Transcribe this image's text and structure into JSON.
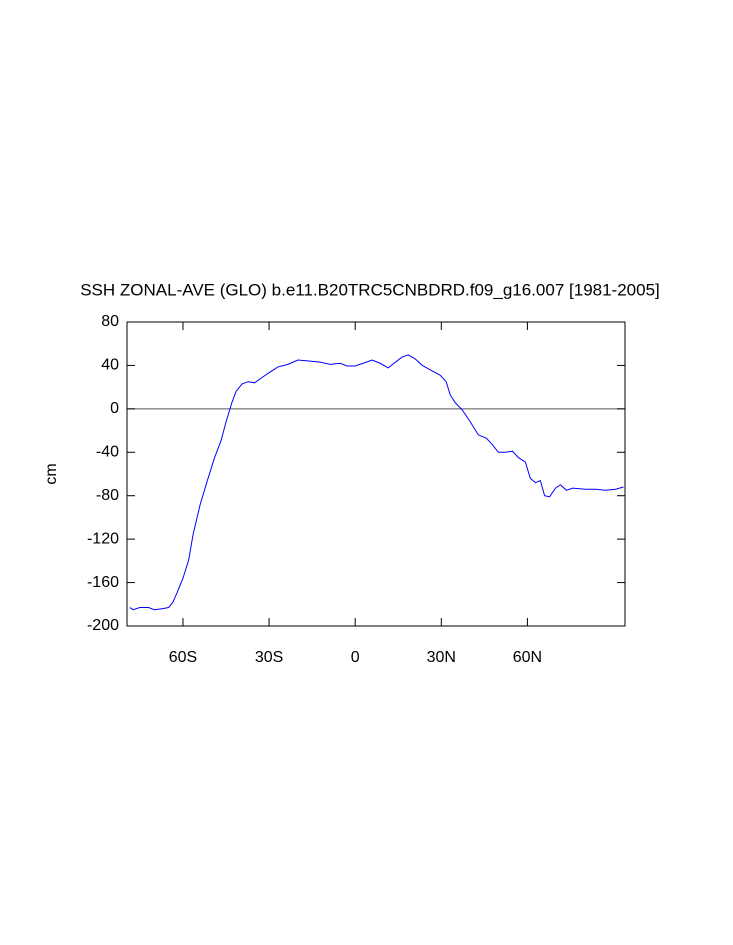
{
  "chart_data": {
    "type": "line",
    "title": "SSH ZONAL-AVE (GLO) b.e11.B20TRC5CNBDRD.f09_g16.007 [1981-2005]",
    "y_label": "cm",
    "xlim": [
      -79.5,
      94
    ],
    "ylim": [
      -200,
      80
    ],
    "xticks": [
      {
        "value": -60,
        "label": "60S"
      },
      {
        "value": -30,
        "label": "30S"
      },
      0,
      {
        "value": 30,
        "label": "30N"
      },
      {
        "value": 60,
        "label": "60N"
      }
    ],
    "yticks": [
      80,
      40,
      0,
      -40,
      -80,
      -120,
      -160,
      -200
    ],
    "reference_line": 0,
    "series": [
      {
        "color": "#0000ff",
        "x": [
          -78.5,
          -77.4,
          -75,
          -72,
          -70,
          -67,
          -65,
          -63.5,
          -62,
          -60,
          -58,
          -56.5,
          -54,
          -51.5,
          -49,
          -46.7,
          -45,
          -43,
          -41.5,
          -39.4,
          -37.3,
          -35,
          -32.4,
          -29.6,
          -26.9,
          -23.4,
          -20,
          -15.7,
          -12.2,
          -8.7,
          -5.2,
          -2.8,
          0,
          2.8,
          5.9,
          8.7,
          11.5,
          14,
          16.4,
          18.5,
          20.9,
          23.4,
          26.2,
          29.6,
          31.7,
          33.1,
          34.9,
          37.3,
          40.1,
          42.9,
          45.7,
          47.8,
          49.9,
          52.3,
          54.8,
          56.9,
          59.3,
          61,
          62.8,
          64.5,
          66,
          67.7,
          69.8,
          71.5,
          73.6,
          75.7,
          80.2,
          83.7,
          87.2,
          90.7,
          93.5
        ],
        "values": [
          -183,
          -185,
          -183,
          -183,
          -185,
          -184,
          -183,
          -178,
          -169,
          -156,
          -139,
          -116,
          -88,
          -66,
          -45,
          -29,
          -12,
          5.5,
          16,
          23,
          25,
          24,
          29,
          34,
          38.6,
          41,
          45,
          44,
          43,
          41,
          42,
          39.5,
          39.5,
          42,
          45,
          42,
          37.7,
          43,
          47.8,
          49.7,
          46,
          40,
          35.8,
          31,
          25,
          13,
          5.5,
          -1,
          -12,
          -24,
          -27,
          -33,
          -40,
          -40,
          -39,
          -45,
          -49,
          -64,
          -68,
          -66,
          -80,
          -81,
          -73,
          -70,
          -75,
          -73,
          -74,
          -74,
          -75,
          -74,
          -72
        ]
      }
    ]
  }
}
